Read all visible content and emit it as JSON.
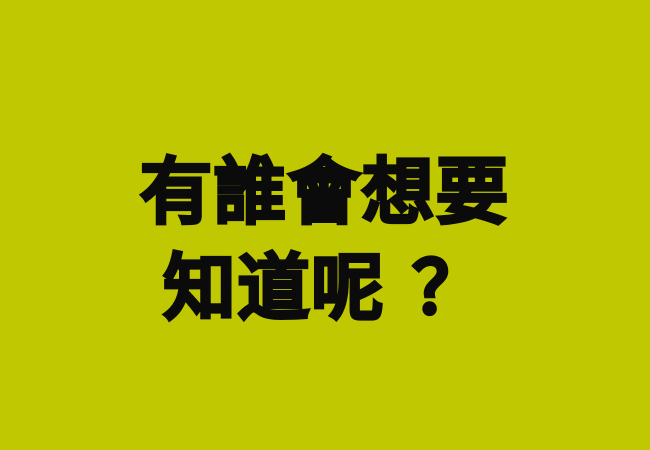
{
  "colors": {
    "background": "#c0c801",
    "text": "#0b0b0b"
  },
  "headline": {
    "line1": "有誰會想要",
    "line2": "知道呢 ？"
  }
}
